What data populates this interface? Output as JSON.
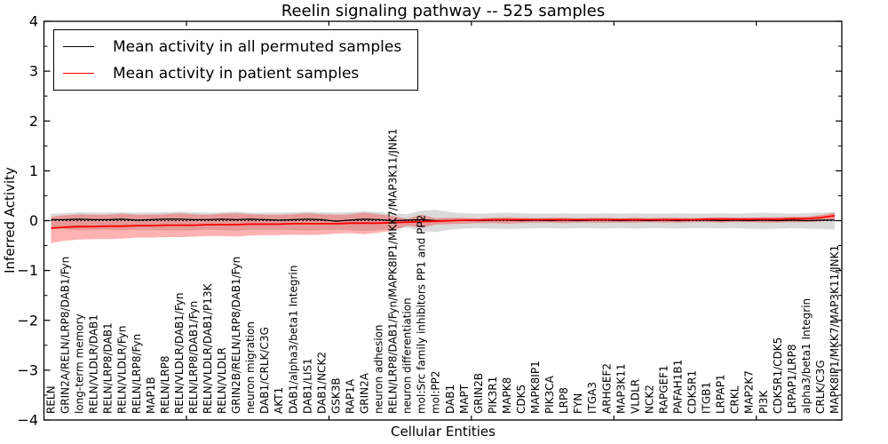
{
  "figure": {
    "title": "Reelin signaling pathway -- 525 samples",
    "xlabel": "Cellular Entities",
    "ylabel": "Inferred Activity"
  },
  "legend": {
    "entries": [
      {
        "label": "Mean activity in all permuted samples",
        "color": "#000000"
      },
      {
        "label": "Mean activity in patient samples",
        "color": "#ff0000"
      }
    ]
  },
  "chart_data": {
    "type": "line",
    "title": "Reelin signaling pathway -- 525 samples",
    "xlabel": "Cellular Entities",
    "ylabel": "Inferred Activity",
    "ylim": [
      -4,
      4
    ],
    "yticks_major": [
      4,
      3,
      2,
      1,
      0,
      -1,
      -2,
      -3,
      -4
    ],
    "ytick_labels": [
      "4",
      "3",
      "2",
      "1",
      "0",
      "−1",
      "−2",
      "−3",
      "−4"
    ],
    "yticks_minor": [
      3.5,
      2.5,
      1.5,
      0.5,
      -0.5,
      -1.5,
      -2.5,
      -3.5
    ],
    "xticks_major_positions": [
      10,
      20,
      30,
      40,
      50
    ],
    "grid": false,
    "legend_position": "upper left",
    "zero_line": {
      "style": "dotted",
      "color": "#000000",
      "y": 0
    },
    "categories": [
      "RELN",
      "GRIN2A/RELN/LRP8/DAB1/Fyn",
      "long-term memory",
      "RELN/VLDLR/DAB1",
      "RELN/LRP8/DAB1",
      "RELN/VLDLR/Fyn",
      "RELN/LRP8/Fyn",
      "MAP1B",
      "RELN/LRP8",
      "RELN/VLDLR/DAB1/Fyn",
      "RELN/LRP8/DAB1/Fyn",
      "RELN/VLDLR/DAB1/P13K",
      "RELN/VLDLR",
      "GRIN2B/RELN/LRP8/DAB1/Fyn",
      "neuron migration",
      "DAB1/CRLK/C3G",
      "AKT1",
      "DAB1/alpha3/beta1 Integrin",
      "DAB1/LIS1",
      "DAB1/NCK2",
      "GSK3B",
      "RAP1A",
      "GRIN2A",
      "neuron adhesion",
      "RELN/LRP8/DAB1/Fyn/MAPK8IP1/MKK7/MAP3K11/JNK1",
      "neuron differentiation",
      "mol:Src family inhibitors PP1 and PP2",
      "mol:PP2",
      "DAB1",
      "MAPT",
      "GRIN2B",
      "PIK3R1",
      "MAPK8",
      "CDK5",
      "MAPK8IP1",
      "PIK3CA",
      "LRP8",
      "FYN",
      "ITGA3",
      "ARHGEF2",
      "MAP3K11",
      "VLDLR",
      "NCK2",
      "RAPGEF1",
      "PAFAH1B1",
      "CDK5R1",
      "ITGB1",
      "LRPAP1",
      "CRKL",
      "MAP2K7",
      "PI3K",
      "CDK5R1/CDK5",
      "LRPAP1/LRP8",
      "alpha3/beta1 Integrin",
      "CRLK/C3G",
      "MAPK8IP1/MKK7/MAP3K11/JNK1"
    ],
    "series": [
      {
        "name": "Mean activity in all permuted samples",
        "color": "#000000",
        "values": [
          0.02,
          0.02,
          0.03,
          0.02,
          0.02,
          0.03,
          0.01,
          0.02,
          0.03,
          0.03,
          0.02,
          0.02,
          0.03,
          0.02,
          0.03,
          0.02,
          0.01,
          0.02,
          0.03,
          0.02,
          -0.01,
          0.01,
          0.03,
          0.02,
          0.0,
          0.01,
          0.02,
          0.0,
          0.0,
          0.01,
          0.0,
          0.01,
          0.01,
          0.0,
          0.01,
          0.0,
          0.01,
          0.0,
          0.01,
          0.01,
          0.0,
          0.01,
          0.0,
          0.01,
          0.0,
          0.01,
          0.01,
          0.0,
          0.01,
          0.0,
          0.01,
          0.0,
          0.01,
          0.0,
          0.01,
          0.01
        ]
      },
      {
        "name": "Mean activity in patient samples",
        "color": "#ff0000",
        "values": [
          -0.15,
          -0.13,
          -0.12,
          -0.12,
          -0.11,
          -0.11,
          -0.1,
          -0.1,
          -0.09,
          -0.09,
          -0.09,
          -0.08,
          -0.08,
          -0.08,
          -0.07,
          -0.07,
          -0.07,
          -0.06,
          -0.06,
          -0.06,
          -0.06,
          -0.05,
          -0.05,
          -0.05,
          -0.04,
          -0.03,
          -0.02,
          -0.01,
          0.0,
          0.01,
          0.01,
          0.02,
          0.02,
          0.02,
          0.02,
          0.02,
          0.02,
          0.02,
          0.02,
          0.02,
          0.02,
          0.02,
          0.02,
          0.02,
          0.02,
          0.02,
          0.03,
          0.03,
          0.03,
          0.03,
          0.03,
          0.03,
          0.04,
          0.04,
          0.06,
          0.1
        ]
      }
    ],
    "bands": [
      {
        "name": "permuted-range",
        "color": "#777777",
        "opacity": 0.27,
        "upper": [
          0.14,
          0.15,
          0.17,
          0.16,
          0.16,
          0.17,
          0.16,
          0.16,
          0.17,
          0.18,
          0.17,
          0.16,
          0.17,
          0.18,
          0.16,
          0.16,
          0.16,
          0.17,
          0.18,
          0.17,
          0.16,
          0.17,
          0.19,
          0.17,
          0.15,
          0.13,
          0.2,
          0.22,
          0.17,
          0.15,
          0.14,
          0.15,
          0.16,
          0.15,
          0.14,
          0.14,
          0.15,
          0.14,
          0.14,
          0.15,
          0.14,
          0.15,
          0.14,
          0.14,
          0.15,
          0.14,
          0.14,
          0.15,
          0.14,
          0.15,
          0.16,
          0.15,
          0.14,
          0.15,
          0.16,
          0.17
        ],
        "lower": [
          -0.16,
          -0.17,
          -0.19,
          -0.18,
          -0.18,
          -0.19,
          -0.18,
          -0.18,
          -0.19,
          -0.2,
          -0.19,
          -0.18,
          -0.19,
          -0.2,
          -0.18,
          -0.18,
          -0.18,
          -0.19,
          -0.2,
          -0.19,
          -0.18,
          -0.19,
          -0.21,
          -0.19,
          -0.17,
          -0.14,
          -0.21,
          -0.23,
          -0.18,
          -0.16,
          -0.15,
          -0.16,
          -0.17,
          -0.16,
          -0.15,
          -0.15,
          -0.16,
          -0.15,
          -0.15,
          -0.16,
          -0.15,
          -0.16,
          -0.15,
          -0.15,
          -0.16,
          -0.15,
          -0.15,
          -0.16,
          -0.15,
          -0.16,
          -0.17,
          -0.16,
          -0.15,
          -0.16,
          -0.17,
          -0.18
        ]
      },
      {
        "name": "patient-range",
        "color": "#ff0000",
        "opacity": 0.3,
        "upper": [
          0.08,
          0.11,
          0.13,
          0.12,
          0.12,
          0.14,
          0.12,
          0.12,
          0.13,
          0.15,
          0.13,
          0.12,
          0.14,
          0.15,
          0.13,
          0.12,
          0.12,
          0.13,
          0.15,
          0.13,
          0.12,
          0.13,
          0.16,
          0.13,
          0.09,
          0.04,
          0.12,
          0.05,
          0.06,
          0.06,
          0.05,
          0.06,
          0.07,
          0.06,
          0.05,
          0.06,
          0.06,
          0.05,
          0.06,
          0.06,
          0.05,
          0.06,
          0.05,
          0.06,
          0.06,
          0.05,
          0.06,
          0.07,
          0.06,
          0.06,
          0.07,
          0.07,
          0.08,
          0.08,
          0.11,
          0.16
        ],
        "lower": [
          -0.45,
          -0.4,
          -0.38,
          -0.37,
          -0.37,
          -0.36,
          -0.34,
          -0.34,
          -0.33,
          -0.33,
          -0.32,
          -0.31,
          -0.31,
          -0.32,
          -0.3,
          -0.29,
          -0.29,
          -0.28,
          -0.29,
          -0.28,
          -0.26,
          -0.25,
          -0.27,
          -0.24,
          -0.2,
          -0.1,
          -0.14,
          -0.08,
          -0.07,
          -0.06,
          -0.05,
          -0.05,
          -0.06,
          -0.05,
          -0.04,
          -0.04,
          -0.05,
          -0.04,
          -0.04,
          -0.04,
          -0.04,
          -0.04,
          -0.03,
          -0.04,
          -0.04,
          -0.03,
          -0.03,
          -0.04,
          -0.03,
          -0.03,
          -0.04,
          -0.04,
          -0.03,
          -0.03,
          -0.02,
          0.02
        ]
      }
    ]
  }
}
